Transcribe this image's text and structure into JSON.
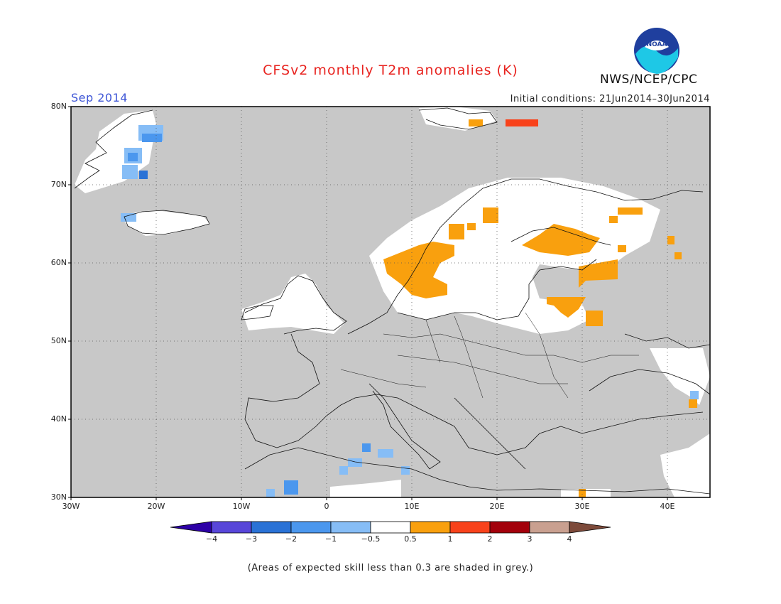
{
  "title": "CFSv2 monthly T2m anomalies (K)",
  "month": "Sep 2014",
  "initial_conditions": "Initial conditions: 21Jun2014–30Jun2014",
  "agency": "NWS/NCEP/CPC",
  "logo_text": "NOAA",
  "footnote": "(Areas of expected skill less than 0.3 are shaded in grey.)",
  "map": {
    "lat_labels": [
      "80N",
      "70N",
      "60N",
      "50N",
      "40N",
      "30N"
    ],
    "lon_labels": [
      "30W",
      "20W",
      "10W",
      "0",
      "10E",
      "20E",
      "30E",
      "40E"
    ],
    "lat_range": [
      30,
      80
    ],
    "lon_range": [
      -30,
      45
    ],
    "grid": true
  },
  "colorbar": {
    "labels": [
      "−4",
      "−3",
      "−2",
      "−1",
      "−0.5",
      "0.5",
      "1",
      "2",
      "3",
      "4"
    ],
    "colors": [
      "#2d00a6",
      "#5846d9",
      "#2a72d6",
      "#4b97ee",
      "#86bdf6",
      "#ffffff",
      "#f9a00e",
      "#f8421b",
      "#a3000b",
      "#c9a090",
      "#7d4a3a"
    ]
  },
  "colors": {
    "skill_grey": "#c8c8c8",
    "land_neutral": "#ffffff",
    "warm_1": "#f9a00e",
    "warm_2": "#f8421b",
    "cool_1": "#86bdf6",
    "cool_2": "#4b97ee",
    "cool_3": "#2a72d6"
  }
}
